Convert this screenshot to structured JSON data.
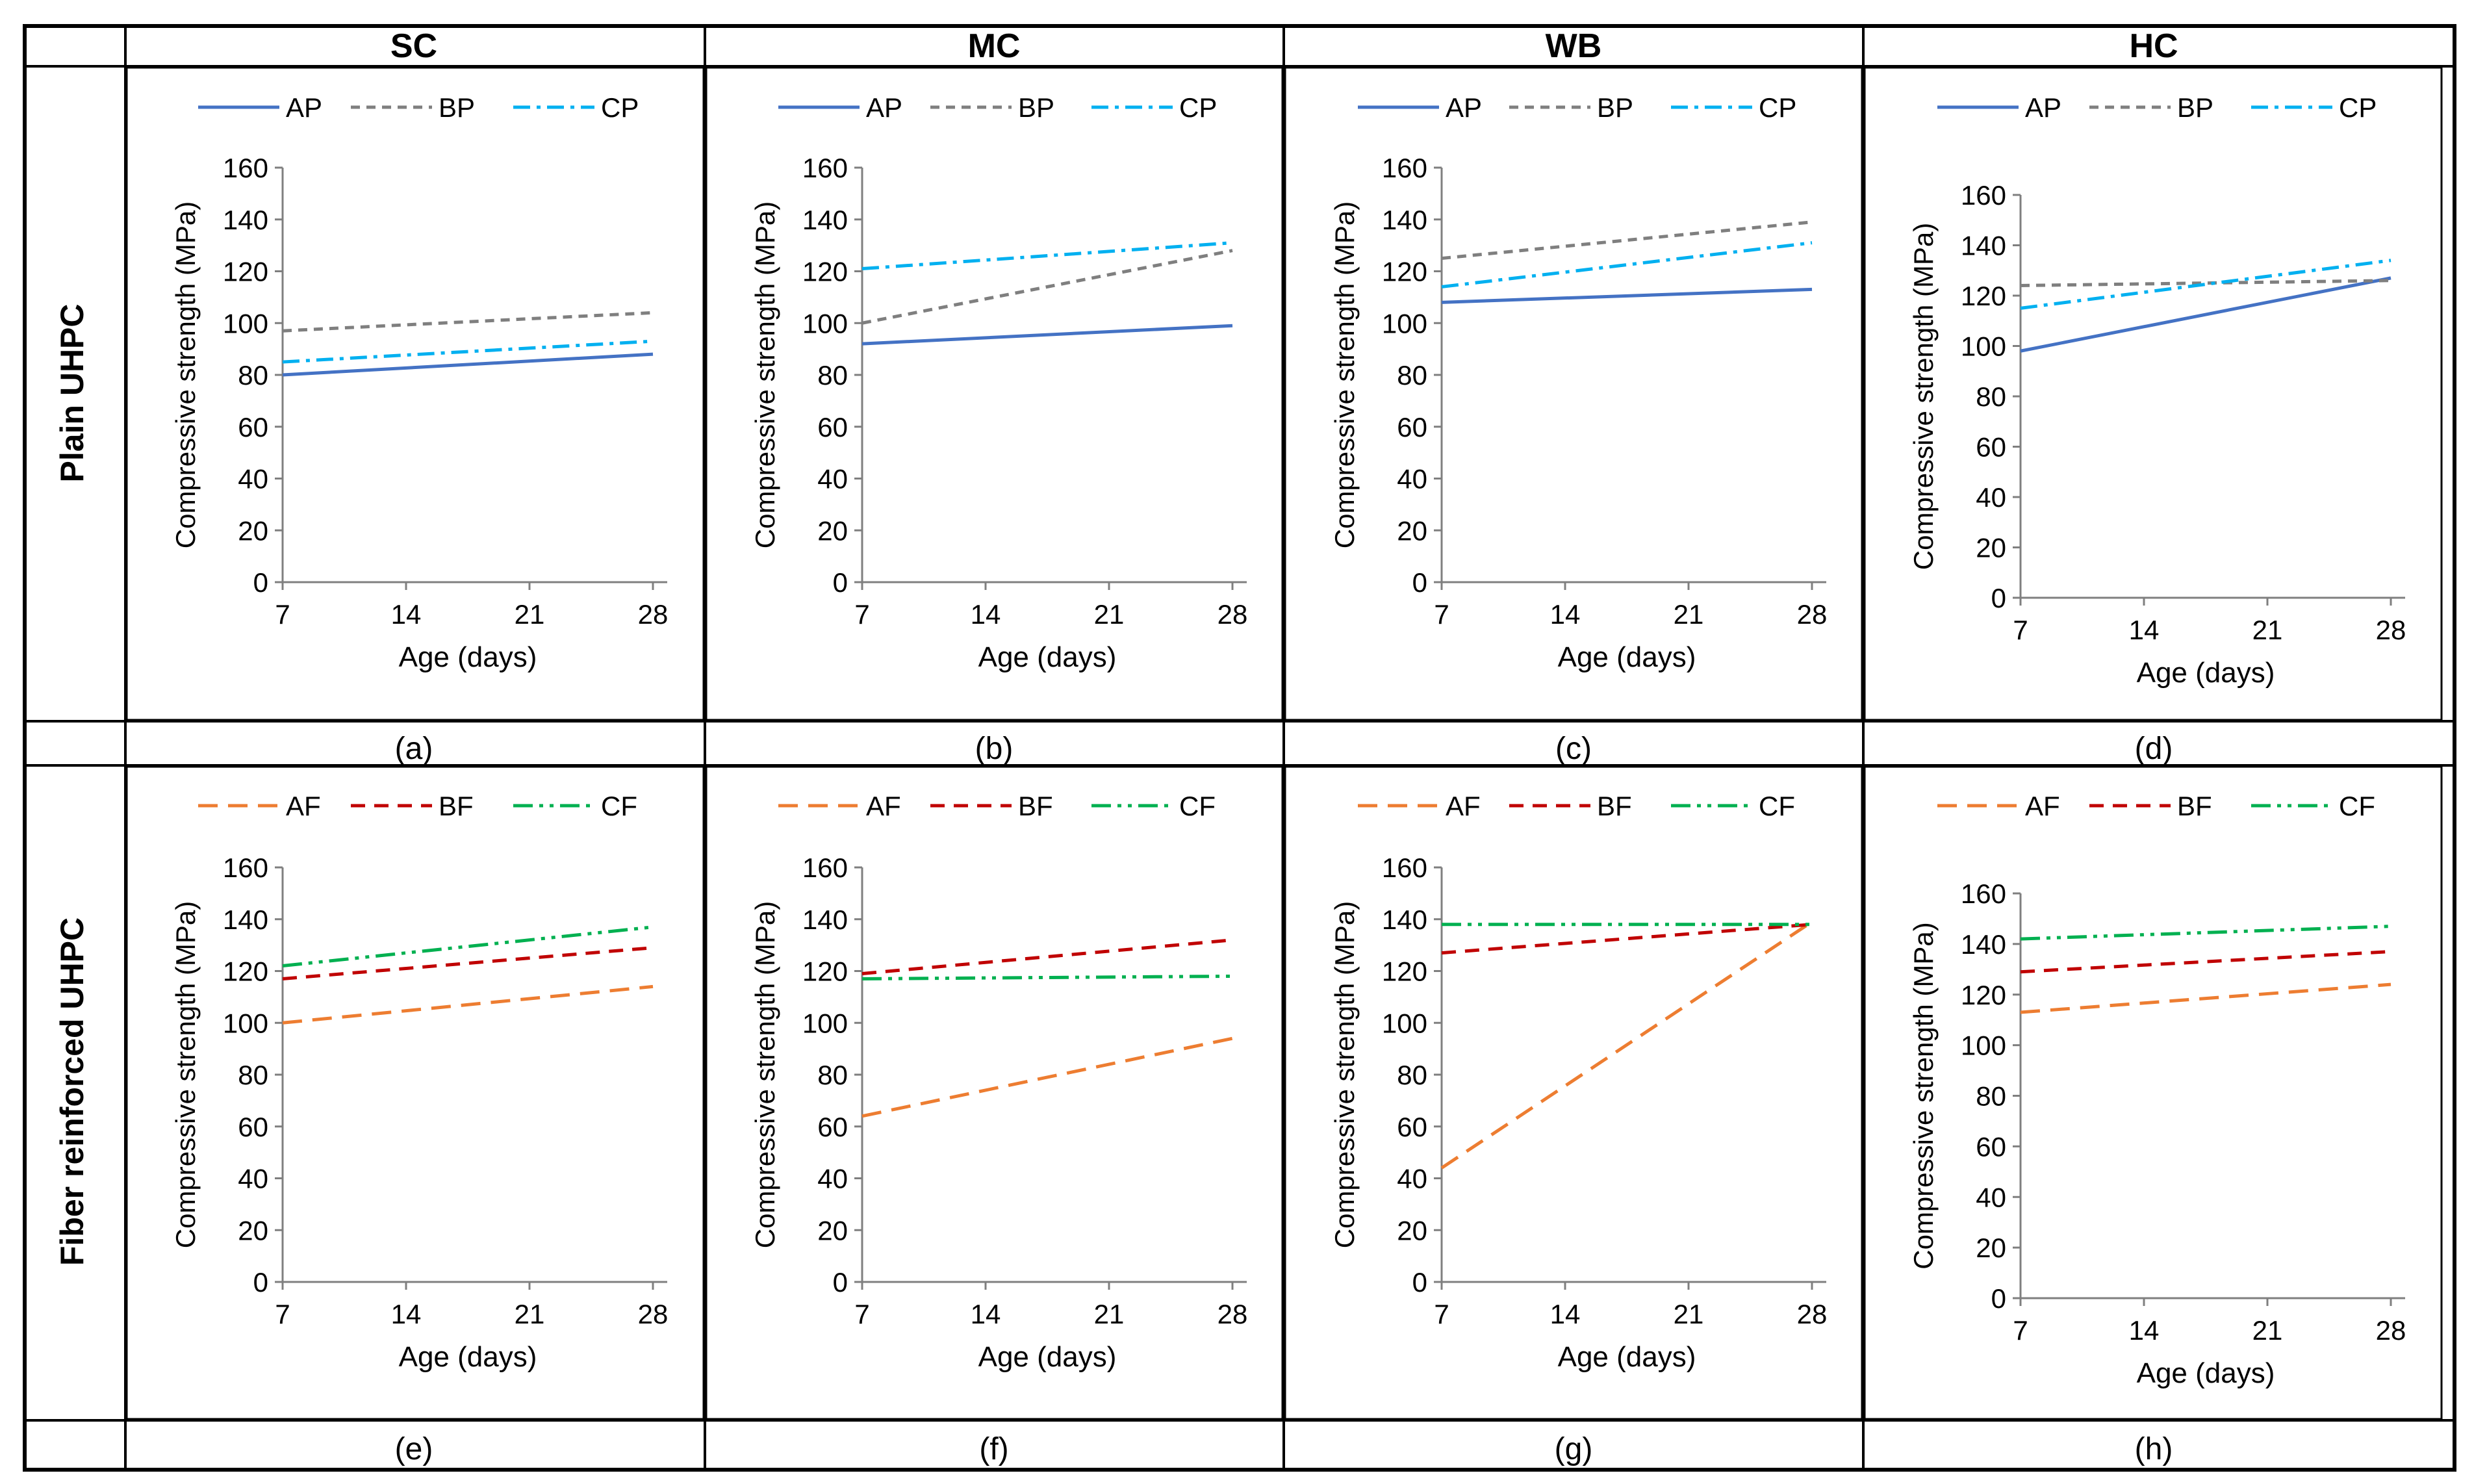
{
  "columns": [
    "SC",
    "MC",
    "WB",
    "HC"
  ],
  "rows": [
    "Plain UHPC",
    "Fiber reinforced UHPC"
  ],
  "panel_labels": [
    "(a)",
    "(b)",
    "(c)",
    "(d)",
    "(e)",
    "(f)",
    "(g)",
    "(h)"
  ],
  "colors": {
    "AP": "#4472C4",
    "BP": "#7F7F7F",
    "CP": "#00B0F0",
    "AF": "#ED7D31",
    "BF": "#C00000",
    "CF": "#00B050",
    "axis": "#7F7F7F",
    "frame": "#000000",
    "text": "#000000"
  },
  "chart_data": [
    {
      "id": "a",
      "type": "line",
      "title": "SC",
      "row": "Plain UHPC",
      "x": [
        7,
        28
      ],
      "xticks": [
        7,
        14,
        21,
        28
      ],
      "xlabel": "Age (days)",
      "ylabel": "Compressive strength (MPa)",
      "ylim": [
        0,
        160
      ],
      "yticks": [
        0,
        20,
        40,
        60,
        80,
        100,
        120,
        140,
        160
      ],
      "legend": "top",
      "series": [
        {
          "name": "AP",
          "values": [
            80,
            88
          ]
        },
        {
          "name": "BP",
          "values": [
            97,
            104
          ]
        },
        {
          "name": "CP",
          "values": [
            85,
            93
          ]
        }
      ]
    },
    {
      "id": "b",
      "type": "line",
      "title": "MC",
      "row": "Plain UHPC",
      "x": [
        7,
        28
      ],
      "xticks": [
        7,
        14,
        21,
        28
      ],
      "xlabel": "Age (days)",
      "ylabel": "Compressive strength (MPa)",
      "ylim": [
        0,
        160
      ],
      "yticks": [
        0,
        20,
        40,
        60,
        80,
        100,
        120,
        140,
        160
      ],
      "legend": "top",
      "series": [
        {
          "name": "AP",
          "values": [
            92,
            99
          ]
        },
        {
          "name": "BP",
          "values": [
            100,
            128
          ]
        },
        {
          "name": "CP",
          "values": [
            121,
            131
          ]
        }
      ]
    },
    {
      "id": "c",
      "type": "line",
      "title": "WB",
      "row": "Plain UHPC",
      "x": [
        7,
        28
      ],
      "xticks": [
        7,
        14,
        21,
        28
      ],
      "xlabel": "Age (days)",
      "ylabel": "Compressive strength (MPa)",
      "ylim": [
        0,
        160
      ],
      "yticks": [
        0,
        20,
        40,
        60,
        80,
        100,
        120,
        140,
        160
      ],
      "legend": "top",
      "series": [
        {
          "name": "AP",
          "values": [
            108,
            113
          ]
        },
        {
          "name": "BP",
          "values": [
            125,
            139
          ]
        },
        {
          "name": "CP",
          "values": [
            114,
            131
          ]
        }
      ]
    },
    {
      "id": "d",
      "type": "line",
      "title": "HC",
      "row": "Plain UHPC",
      "x": [
        7,
        28
      ],
      "xticks": [
        7,
        14,
        21,
        28
      ],
      "xlabel": "Age (days)",
      "ylabel": "Compressive strength (MPa)",
      "ylim": [
        0,
        160
      ],
      "yticks": [
        0,
        20,
        40,
        60,
        80,
        100,
        120,
        140,
        160
      ],
      "legend": "top",
      "series": [
        {
          "name": "AP",
          "values": [
            98,
            127
          ]
        },
        {
          "name": "BP",
          "values": [
            124,
            126
          ]
        },
        {
          "name": "CP",
          "values": [
            115,
            134
          ]
        }
      ]
    },
    {
      "id": "e",
      "type": "line",
      "title": "SC",
      "row": "Fiber reinforced UHPC",
      "x": [
        7,
        28
      ],
      "xticks": [
        7,
        14,
        21,
        28
      ],
      "xlabel": "Age (days)",
      "ylabel": "Compressive strength (MPa)",
      "ylim": [
        0,
        160
      ],
      "yticks": [
        0,
        20,
        40,
        60,
        80,
        100,
        120,
        140,
        160
      ],
      "legend": "top",
      "series": [
        {
          "name": "AF",
          "values": [
            100,
            114
          ]
        },
        {
          "name": "BF",
          "values": [
            117,
            129
          ]
        },
        {
          "name": "CF",
          "values": [
            122,
            137
          ]
        }
      ]
    },
    {
      "id": "f",
      "type": "line",
      "title": "MC",
      "row": "Fiber reinforced UHPC",
      "x": [
        7,
        28
      ],
      "xticks": [
        7,
        14,
        21,
        28
      ],
      "xlabel": "Age (days)",
      "ylabel": "Compressive strength (MPa)",
      "ylim": [
        0,
        160
      ],
      "yticks": [
        0,
        20,
        40,
        60,
        80,
        100,
        120,
        140,
        160
      ],
      "legend": "top",
      "series": [
        {
          "name": "AF",
          "values": [
            64,
            94
          ]
        },
        {
          "name": "BF",
          "values": [
            119,
            132
          ]
        },
        {
          "name": "CF",
          "values": [
            117,
            118
          ]
        }
      ]
    },
    {
      "id": "g",
      "type": "line",
      "title": "WB",
      "row": "Fiber reinforced UHPC",
      "x": [
        7,
        28
      ],
      "xticks": [
        7,
        14,
        21,
        28
      ],
      "xlabel": "Age (days)",
      "ylabel": "Compressive strength (MPa)",
      "ylim": [
        0,
        160
      ],
      "yticks": [
        0,
        20,
        40,
        60,
        80,
        100,
        120,
        140,
        160
      ],
      "legend": "top",
      "series": [
        {
          "name": "AF",
          "values": [
            44,
            139
          ]
        },
        {
          "name": "BF",
          "values": [
            127,
            138
          ]
        },
        {
          "name": "CF",
          "values": [
            138,
            138
          ]
        }
      ]
    },
    {
      "id": "h",
      "type": "line",
      "title": "HC",
      "row": "Fiber reinforced UHPC",
      "x": [
        7,
        28
      ],
      "xticks": [
        7,
        14,
        21,
        28
      ],
      "xlabel": "Age (days)",
      "ylabel": "Compressive strength (MPa)",
      "ylim": [
        0,
        160
      ],
      "yticks": [
        0,
        20,
        40,
        60,
        80,
        100,
        120,
        140,
        160
      ],
      "legend": "top",
      "series": [
        {
          "name": "AF",
          "values": [
            113,
            124
          ]
        },
        {
          "name": "BF",
          "values": [
            129,
            137
          ]
        },
        {
          "name": "CF",
          "values": [
            142,
            147
          ]
        }
      ]
    }
  ]
}
